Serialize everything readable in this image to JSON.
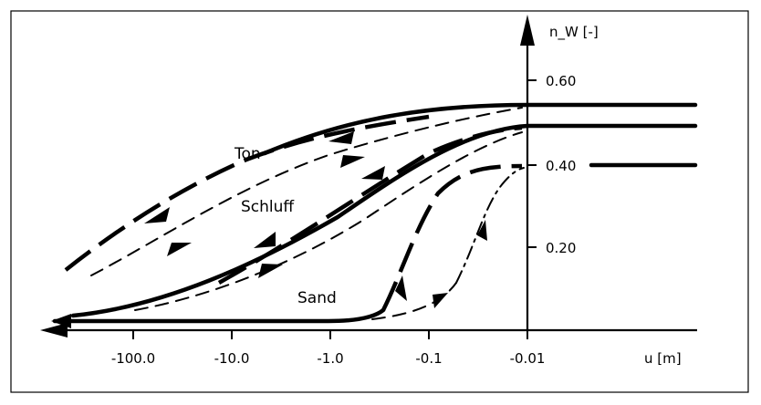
{
  "chart_data": {
    "type": "line",
    "xlabel": "u [m]",
    "ylabel": "n_W [-]",
    "x_scale": "log",
    "xticks": [
      "-100.0",
      "-10.0",
      "-1.0",
      "-0.1",
      "-0.01"
    ],
    "yticks": [
      "0.20",
      "0.40",
      "0.60"
    ],
    "ylim": [
      0,
      0.65
    ],
    "series_labels": [
      "Ton",
      "Schluff",
      "Sand"
    ],
    "series": [
      {
        "name": "Ton",
        "curves": [
          {
            "kind": "drying (solid)",
            "x": [
              -0.01,
              -0.1,
              -1.0,
              -10.0,
              -100.0
            ],
            "y": [
              0.53,
              0.52,
              0.48,
              0.4,
              0.3
            ]
          },
          {
            "kind": "drying (long dash)",
            "x": [
              -10.0,
              -100.0,
              -200.0
            ],
            "y": [
              0.37,
              0.26,
              0.16
            ]
          },
          {
            "kind": "wetting (dashed)",
            "x": [
              -200.0,
              -100.0,
              -10.0,
              -1.0,
              -0.1,
              -0.01
            ],
            "y": [
              0.13,
              0.17,
              0.27,
              0.38,
              0.46,
              0.52
            ]
          }
        ]
      },
      {
        "name": "Schluff",
        "curves": [
          {
            "kind": "drying (solid)",
            "x": [
              -0.01,
              -0.1,
              -1.0,
              -10.0,
              -100.0,
              -200.0
            ],
            "y": [
              0.49,
              0.46,
              0.38,
              0.24,
              0.1,
              0.04
            ]
          },
          {
            "kind": "drying (long dash)",
            "x": [
              -0.1,
              -1.0,
              -10.0
            ],
            "y": [
              0.44,
              0.34,
              0.15
            ]
          },
          {
            "kind": "wetting (dashed)",
            "x": [
              -100.0,
              -10.0,
              -1.0,
              -0.1,
              -0.01
            ],
            "y": [
              0.04,
              0.12,
              0.28,
              0.43,
              0.48
            ]
          }
        ]
      },
      {
        "name": "Sand",
        "curves": [
          {
            "kind": "drying (solid)",
            "x": [
              -200.0,
              -10.0,
              -1.0,
              -0.5
            ],
            "y": [
              0.0,
              0.0,
              0.01,
              0.03
            ]
          },
          {
            "kind": "drying (long dash)",
            "x": [
              -0.01,
              -0.03,
              -0.1,
              -0.3
            ],
            "y": [
              0.4,
              0.38,
              0.25,
              0.05
            ]
          },
          {
            "kind": "wetting (dash-dot)",
            "x": [
              -0.3,
              -0.1,
              -0.03,
              -0.01
            ],
            "y": [
              0.02,
              0.05,
              0.2,
              0.37
            ]
          }
        ]
      }
    ],
    "right_levels": [
      {
        "name": "Ton",
        "y": 0.53
      },
      {
        "name": "Schluff",
        "y": 0.49
      },
      {
        "name": "Sand",
        "y": 0.4
      }
    ]
  }
}
